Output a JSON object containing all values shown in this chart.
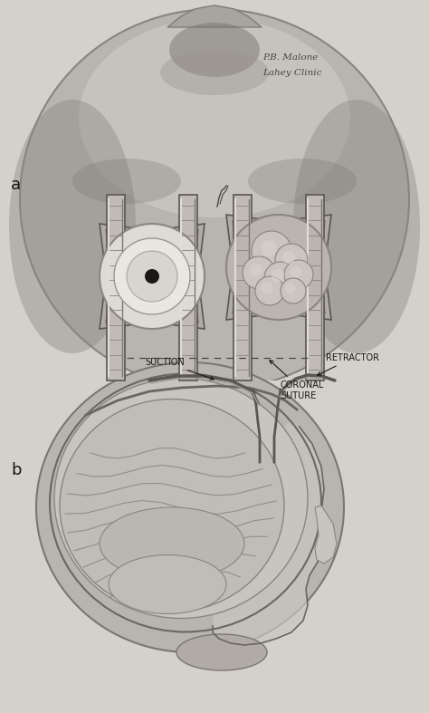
{
  "background_color": "#d4d0ca",
  "fig_width": 4.74,
  "fig_height": 7.87,
  "dpi": 100,
  "label_a": "a",
  "label_b": "b",
  "signature_line1": "P.B. Malone",
  "signature_line2": "Lahey Clinic",
  "annotation_coronal": "CORONAL\nSUTURE",
  "annotation_suction": "SUCTION",
  "annotation_retractor": "RETRACTOR",
  "text_color": "#1a1815",
  "label_fontsize": 13,
  "annotation_fontsize": 7,
  "signature_fontsize": 7.5,
  "skull_a_color": "#b0aca6",
  "skull_a_dark": "#888480",
  "skull_a_light": "#d0ccc6",
  "skull_a_lighter": "#e0dcd6",
  "strip_color": "#a0a0a0",
  "strip_dark": "#707070",
  "burr_left_dura": "#d8d4ce",
  "burr_left_inner": "#e8e4de",
  "burr_dot": "#282420",
  "burr_right_brain": "#c0bbb5",
  "brain_b_color": "#bab5af",
  "skull_b_outer": "#a8a49e",
  "skull_b_light": "#c8c4be",
  "face_color": "#c0bbb5"
}
